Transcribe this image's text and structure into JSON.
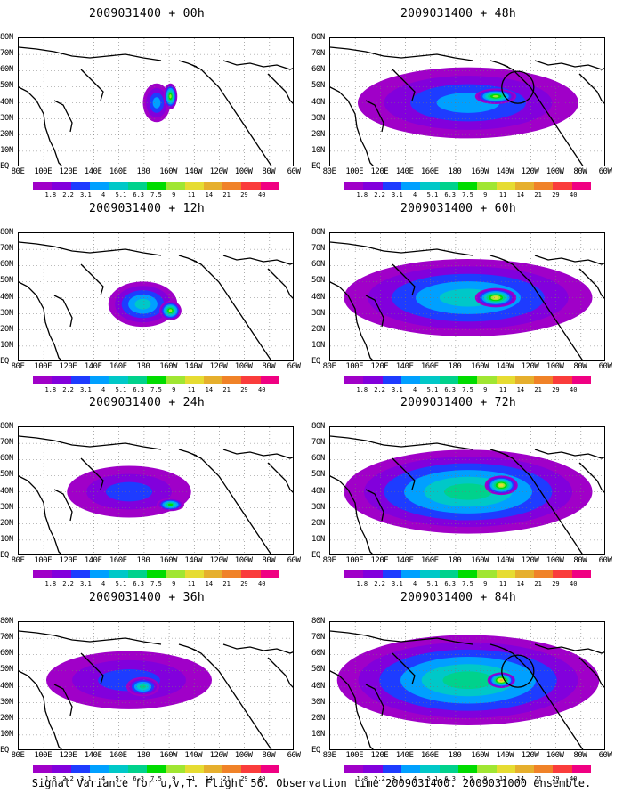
{
  "panels": [
    {
      "title": "2009031400 + 00h",
      "blobs": [
        [
          0.5,
          0.5,
          0.1,
          0.3,
          3
        ],
        [
          0.55,
          0.45,
          0.05,
          0.2,
          7
        ]
      ],
      "extra_circle": false
    },
    {
      "title": "2009031400 + 12h",
      "blobs": [
        [
          0.45,
          0.55,
          0.25,
          0.35,
          4
        ],
        [
          0.55,
          0.6,
          0.08,
          0.15,
          7
        ]
      ],
      "extra_circle": false
    },
    {
      "title": "2009031400 + 24h",
      "blobs": [
        [
          0.4,
          0.5,
          0.45,
          0.4,
          2
        ],
        [
          0.55,
          0.6,
          0.1,
          0.1,
          6
        ]
      ],
      "extra_circle": false
    },
    {
      "title": "2009031400 + 36h",
      "blobs": [
        [
          0.4,
          0.45,
          0.6,
          0.45,
          2
        ],
        [
          0.45,
          0.5,
          0.12,
          0.15,
          5
        ]
      ],
      "extra_circle": false
    },
    {
      "title": "2009031400 + 48h",
      "blobs": [
        [
          0.5,
          0.5,
          0.8,
          0.55,
          3
        ],
        [
          0.6,
          0.45,
          0.15,
          0.12,
          7
        ]
      ],
      "extra_circle": true
    },
    {
      "title": "2009031400 + 60h",
      "blobs": [
        [
          0.5,
          0.5,
          0.9,
          0.6,
          4
        ],
        [
          0.6,
          0.5,
          0.15,
          0.15,
          8
        ]
      ],
      "extra_circle": false
    },
    {
      "title": "2009031400 + 72h",
      "blobs": [
        [
          0.5,
          0.5,
          0.9,
          0.65,
          5
        ],
        [
          0.62,
          0.45,
          0.12,
          0.15,
          8
        ]
      ],
      "extra_circle": false
    },
    {
      "title": "2009031400 + 84h",
      "blobs": [
        [
          0.5,
          0.45,
          0.95,
          0.7,
          5
        ],
        [
          0.62,
          0.45,
          0.1,
          0.12,
          9
        ]
      ],
      "extra_circle": true
    }
  ],
  "lat_labels": [
    "80N",
    "70N",
    "60N",
    "50N",
    "40N",
    "30N",
    "20N",
    "10N",
    "EQ"
  ],
  "lon_labels": [
    "80E",
    "100E",
    "120E",
    "140E",
    "160E",
    "180",
    "160W",
    "140W",
    "120W",
    "100W",
    "80W",
    "60W"
  ],
  "colorbar_labels": [
    "1.8",
    "2.2",
    "3.1",
    "4",
    "5.1",
    "6.3",
    "7.5",
    "9",
    "11",
    "14",
    "21",
    "29",
    "40"
  ],
  "colorbar_colors": [
    "#a000c8",
    "#8200dc",
    "#1e3cff",
    "#00a0ff",
    "#00c8c8",
    "#00d28c",
    "#00dc00",
    "#a0e632",
    "#e6dc32",
    "#e6af2d",
    "#f08228",
    "#fa3c3c",
    "#f00082"
  ],
  "caption": "Signal Variance for u,v,T. Flight 56. Observation time 2009031400. 2009031000 ensemble."
}
